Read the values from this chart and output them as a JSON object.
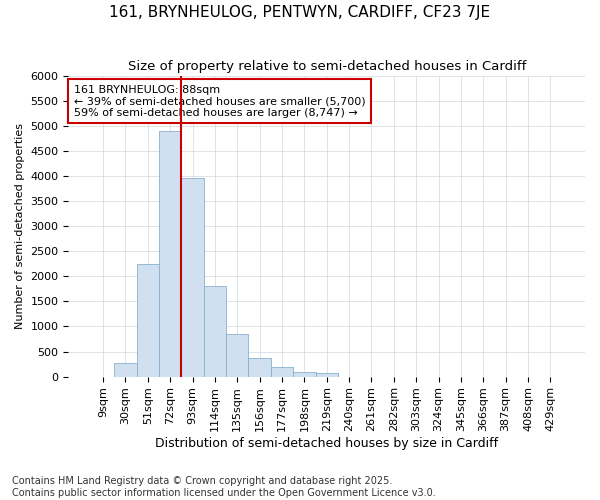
{
  "title": "161, BRYNHEULOG, PENTWYN, CARDIFF, CF23 7JE",
  "subtitle": "Size of property relative to semi-detached houses in Cardiff",
  "xlabel": "Distribution of semi-detached houses by size in Cardiff",
  "ylabel": "Number of semi-detached properties",
  "footnote1": "Contains HM Land Registry data © Crown copyright and database right 2025.",
  "footnote2": "Contains public sector information licensed under the Open Government Licence v3.0.",
  "annotation_title": "161 BRYNHEULOG: 88sqm",
  "annotation_line1": "← 39% of semi-detached houses are smaller (5,700)",
  "annotation_line2": "59% of semi-detached houses are larger (8,747) →",
  "vline_index": 4,
  "bar_categories": [
    "9sqm",
    "30sqm",
    "51sqm",
    "72sqm",
    "93sqm",
    "114sqm",
    "135sqm",
    "156sqm",
    "177sqm",
    "198sqm",
    "219sqm",
    "240sqm",
    "261sqm",
    "282sqm",
    "303sqm",
    "324sqm",
    "345sqm",
    "366sqm",
    "387sqm",
    "408sqm",
    "429sqm"
  ],
  "bar_values": [
    0,
    270,
    2250,
    4900,
    3950,
    1800,
    850,
    380,
    200,
    100,
    70,
    0,
    0,
    0,
    0,
    0,
    0,
    0,
    0,
    0,
    0
  ],
  "bar_color": "#d0e0f0",
  "bar_edge_color": "#8ab0cc",
  "vline_color": "#cc0000",
  "ylim": [
    0,
    6000
  ],
  "yticks": [
    0,
    500,
    1000,
    1500,
    2000,
    2500,
    3000,
    3500,
    4000,
    4500,
    5000,
    5500,
    6000
  ],
  "background_color": "#ffffff",
  "grid_color": "#d0d8e0",
  "title_fontsize": 11,
  "subtitle_fontsize": 9.5,
  "xlabel_fontsize": 9,
  "ylabel_fontsize": 8,
  "tick_fontsize": 8,
  "annotation_fontsize": 8,
  "footnote_fontsize": 7
}
